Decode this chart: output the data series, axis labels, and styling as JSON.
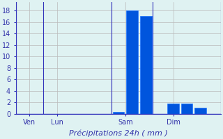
{
  "xlabel": "Précipitations 24h ( mm )",
  "bar_values": [
    0.0,
    0.0,
    0.0,
    0.0,
    0.0,
    0.0,
    0.0,
    0.3,
    18.0,
    17.0,
    0.0,
    1.8,
    1.8,
    1.0,
    0.0
  ],
  "bar_color": "#0055dd",
  "bar_edge_color": "#2277ff",
  "background_color": "#dff2f2",
  "grid_color": "#bbbbbb",
  "axis_color": "#3333bb",
  "ylim": [
    0,
    19.5
  ],
  "yticks": [
    0,
    2,
    4,
    6,
    8,
    10,
    12,
    14,
    16,
    18
  ],
  "xtick_labels": [
    "Ven",
    "Lun",
    "Sam",
    "Dim"
  ],
  "xtick_positions": [
    0.5,
    2.5,
    7.5,
    11.0
  ],
  "n_bars": 15,
  "title_color": "#3333aa",
  "tick_color": "#3333aa",
  "tick_fontsize": 7,
  "xlabel_fontsize": 8
}
